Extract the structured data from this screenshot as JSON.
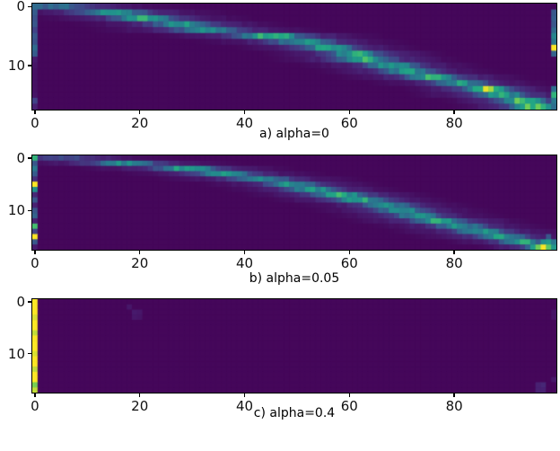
{
  "figure": {
    "background": "#ffffff",
    "description_labels": [
      "a) alpha=0",
      "b) alpha=0.05",
      "c) alpha=0.4"
    ]
  },
  "chart_data": [
    {
      "type": "heatmap",
      "label": "a) alpha=0",
      "rows": 18,
      "cols": 100,
      "x_tick_labels": [
        "0",
        "20",
        "40",
        "60",
        "80"
      ],
      "x_tick_cols": [
        0,
        20,
        40,
        60,
        80
      ],
      "y_tick_labels": [
        "0",
        "10"
      ],
      "y_tick_rows": [
        0,
        10
      ],
      "colormap": "viridis",
      "color_scale": {
        "min": "#440154",
        "low": "#3b528b",
        "mid": "#21918c",
        "high": "#35b779",
        "max": "#fde725"
      },
      "background_value": 0.02,
      "band": [
        [
          4,
          5,
          0.3
        ],
        [
          15,
          4,
          0.45
        ],
        [
          21,
          3.5,
          0.5
        ],
        [
          28,
          3.5,
          0.45
        ],
        [
          33,
          4,
          0.42
        ],
        [
          45,
          3.5,
          0.6
        ],
        [
          51,
          3.5,
          0.45
        ],
        [
          56,
          3,
          0.5
        ],
        [
          61,
          3,
          0.5
        ],
        [
          63,
          3,
          0.55
        ],
        [
          68,
          3,
          0.48
        ],
        [
          71,
          3,
          0.45
        ],
        [
          76,
          3,
          0.55
        ],
        [
          81,
          3,
          0.45
        ],
        [
          86,
          2.5,
          0.65
        ],
        [
          89,
          3,
          0.5
        ],
        [
          93,
          2.5,
          0.6
        ],
        [
          95,
          2.5,
          0.6
        ]
      ],
      "first_column": [
        0.38,
        0.32,
        0.28,
        0.3,
        0.22,
        0.3,
        0.28,
        0.38,
        0.32,
        0.08,
        0.06,
        0.05,
        0.05,
        0.05,
        0.05,
        0.06,
        0.22,
        0.1
      ],
      "cells": [
        [
          1,
          99,
          0.3
        ],
        [
          2,
          99,
          0.32
        ],
        [
          3,
          99,
          0.3
        ],
        [
          4,
          99,
          0.38
        ],
        [
          5,
          99,
          0.5
        ],
        [
          6,
          99,
          0.45
        ],
        [
          7,
          99,
          1.0
        ],
        [
          8,
          99,
          0.35
        ],
        [
          14,
          99,
          0.4
        ],
        [
          15,
          99,
          0.72
        ],
        [
          16,
          99,
          0.45
        ],
        [
          17,
          99,
          0.4
        ],
        [
          14,
          85,
          0.68
        ],
        [
          14,
          86,
          0.72
        ],
        [
          14,
          87,
          0.6
        ],
        [
          16,
          94,
          0.6
        ],
        [
          16,
          95,
          0.65
        ],
        [
          16,
          96,
          0.55
        ],
        [
          17,
          93,
          0.55
        ],
        [
          17,
          94,
          0.6
        ],
        [
          17,
          95,
          0.65
        ],
        [
          17,
          96,
          0.6
        ]
      ]
    },
    {
      "type": "heatmap",
      "label": "b) alpha=0.05",
      "rows": 18,
      "cols": 100,
      "x_tick_labels": [
        "0",
        "20",
        "40",
        "60",
        "80"
      ],
      "x_tick_cols": [
        0,
        20,
        40,
        60,
        80
      ],
      "y_tick_labels": [
        "0",
        "10"
      ],
      "y_tick_rows": [
        0,
        10
      ],
      "colormap": "viridis",
      "color_scale": {
        "min": "#440154",
        "low": "#3b528b",
        "mid": "#21918c",
        "high": "#35b779",
        "max": "#fde725"
      },
      "background_value": 0.02,
      "band": [
        [
          6,
          5,
          0.18
        ],
        [
          17,
          4,
          0.4
        ],
        [
          29,
          3.5,
          0.5
        ],
        [
          36,
          3.5,
          0.42
        ],
        [
          43,
          3.5,
          0.42
        ],
        [
          49,
          3,
          0.45
        ],
        [
          53,
          3,
          0.45
        ],
        [
          58,
          3,
          0.55
        ],
        [
          62,
          3,
          0.5
        ],
        [
          67,
          3,
          0.42
        ],
        [
          70,
          3,
          0.45
        ],
        [
          73,
          3,
          0.42
        ],
        [
          77,
          3,
          0.5
        ],
        [
          81,
          3,
          0.42
        ],
        [
          85,
          3,
          0.45
        ],
        [
          89,
          3,
          0.45
        ],
        [
          93,
          2.5,
          0.5
        ],
        [
          97,
          2,
          0.65
        ]
      ],
      "first_column": [
        0.72,
        0.3,
        0.45,
        0.32,
        0.15,
        1.0,
        0.55,
        0.12,
        0.3,
        0.1,
        0.3,
        0.35,
        0.1,
        0.78,
        0.22,
        1.0,
        0.3,
        0.08
      ],
      "cells": [
        [
          15,
          98,
          0.3
        ],
        [
          16,
          97,
          0.55
        ],
        [
          16,
          98,
          0.6
        ],
        [
          16,
          99,
          0.45
        ],
        [
          17,
          96,
          0.5
        ],
        [
          17,
          97,
          0.65
        ],
        [
          17,
          98,
          0.6
        ],
        [
          17,
          99,
          0.5
        ]
      ]
    },
    {
      "type": "heatmap",
      "label": "c) alpha=0.4",
      "rows": 18,
      "cols": 100,
      "x_tick_labels": [
        "0",
        "20",
        "40",
        "60",
        "80"
      ],
      "x_tick_cols": [
        0,
        20,
        40,
        60,
        80
      ],
      "y_tick_labels": [
        "0",
        "10"
      ],
      "y_tick_rows": [
        0,
        10
      ],
      "colormap": "viridis",
      "color_scale": {
        "min": "#440154",
        "low": "#3b528b",
        "mid": "#21918c",
        "high": "#35b779",
        "max": "#fde725"
      },
      "background_value": 0.02,
      "band": [],
      "first_column": [
        1,
        1,
        1,
        0.97,
        1,
        1,
        0.95,
        1,
        1,
        1,
        0.97,
        1,
        1,
        0.95,
        1,
        1,
        0.88,
        0.95
      ],
      "cells": [
        [
          1,
          18,
          0.07
        ],
        [
          2,
          19,
          0.08
        ],
        [
          2,
          20,
          0.07
        ],
        [
          3,
          19,
          0.07
        ],
        [
          3,
          20,
          0.06
        ],
        [
          2,
          99,
          0.06
        ],
        [
          3,
          99,
          0.06
        ],
        [
          15,
          99,
          0.07
        ],
        [
          16,
          96,
          0.1
        ],
        [
          16,
          97,
          0.12
        ],
        [
          17,
          96,
          0.1
        ],
        [
          17,
          97,
          0.1
        ]
      ]
    }
  ]
}
